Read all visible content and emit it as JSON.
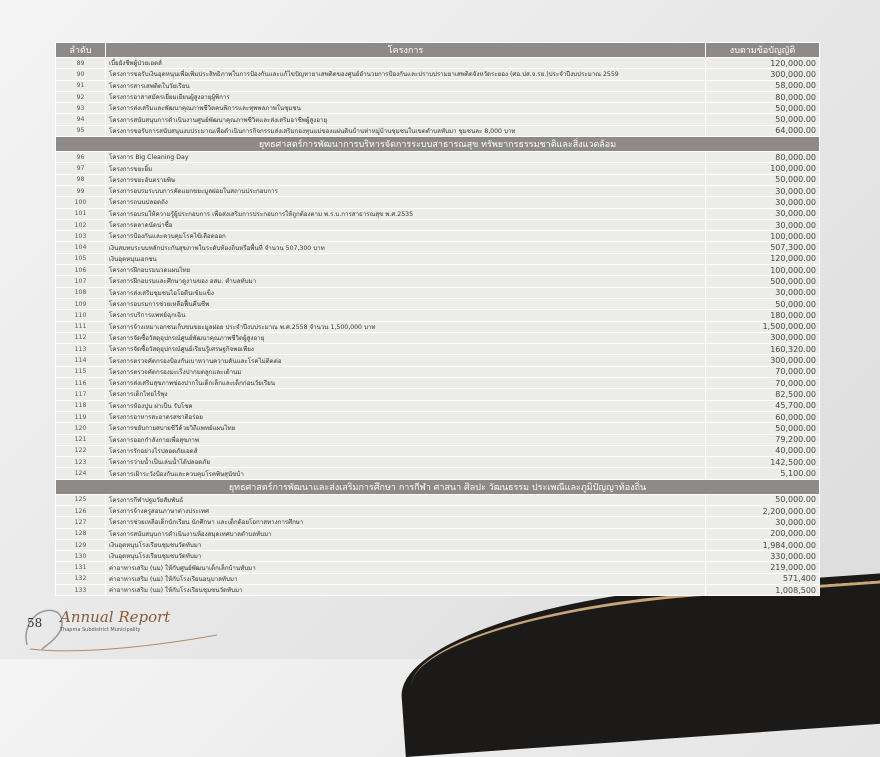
{
  "header": {
    "no": "ลำดับ",
    "project": "โครงการ",
    "budget": "งบตามข้อบัญญัติ"
  },
  "groups": [
    {
      "section": "",
      "rows": [
        [
          "89",
          "เบี้ยยังชีพผู้ป่วยเอดส์",
          "120,000.00"
        ],
        [
          "90",
          "โครงการขอรับเงินอุดหนุนเพื่อเพิ่มประสิทธิภาพในการป้องกันและแก้ไขปัญหายาเสพติดของศูนย์อำนวยการป้องกันและปราบปรามยาเสพติดจังหวัดระยอง (ศอ.ปส.จ.รย.)ประจำปีงบประมาณ 2559",
          "300,000.00"
        ],
        [
          "91",
          "โครงการสารเสพติดในวัยเรียน",
          "58,000.00"
        ],
        [
          "92",
          "โครงการอาสาสมัครเยี่ยมเยียนผู้สูงอายุผู้พิการ",
          "80,000.00"
        ],
        [
          "93",
          "โครงการส่งเสริมและพัฒนาคุณภาพชีวิตคนพิการและทุพพลภาพในชุมชน",
          "50,000.00"
        ],
        [
          "94",
          "โครงการสนับสนุนการดำเนินงานศูนย์พัฒนาคุณภาพชีวิตและส่งเสริมอาชีพผู้สูงอายุ",
          "50,000.00"
        ],
        [
          "95",
          "โครงการขอรับการสนับสนุนงบประมาณเพื่อดำเนินการกิจกรรมส่งเสริมกองทุนแม่ของแผ่นดินบ้านท่าหมู่บ้านชุมชนในเขตตำบลทับมา ชุมชนละ 8,000 บาท",
          "64,000.00"
        ]
      ]
    },
    {
      "section": "ยุทธศาสตร์การพัฒนาการบริหารจัดการระบบสาธารณสุข ทรัพยากรธรรมชาติและสิ่งแวดล้อม",
      "rows": [
        [
          "96",
          "โครงการ Big Cleaning Day",
          "80,000.00"
        ],
        [
          "97",
          "โครงการขยะยิ้ม",
          "100,000.00"
        ],
        [
          "98",
          "โครงการขยะอันตรายพิษ",
          "50,000.00"
        ],
        [
          "99",
          "โครงการอบรมระบบการคัดแยกขยะมูลฝอยในสถานประกอบการ",
          "30,000.00"
        ],
        [
          "100",
          "โครงการถนนปลอดถัง",
          "30,000.00"
        ],
        [
          "101",
          "โครงการอบรมให้ความรู้ผู้ประกอบการ เพื่อส่งเสริมการประกอบการให้ถูกต้องตาม พ.ร.บ.การสาธารณสุข พ.ศ.2535",
          "30,000.00"
        ],
        [
          "102",
          "โครงการตลาดนัดน่าซื้อ",
          "30,000.00"
        ],
        [
          "103",
          "โครงการป้องกันและควบคุมโรคไข้เลือดออก",
          "100,000.00"
        ],
        [
          "104",
          "เงินสมทบระบบหลักประกันสุขภาพในระดับท้องถิ่นหรือพื้นที่ จำนวน 507,300 บาท",
          "507,300.00"
        ],
        [
          "105",
          "เงินอุดหนุนเอกชน",
          "120,000.00"
        ],
        [
          "106",
          "โครงการฝึกอบรมนวดแผนไทย",
          "100,000.00"
        ],
        [
          "107",
          "โครงการฝึกอบรมและศึกษาดูงานของ อสม. ตำบลทับมา",
          "500,000.00"
        ],
        [
          "108",
          "โครงการส่งเสริมชุมชนไอโอดีนเข้มแข็ง",
          "30,000.00"
        ],
        [
          "109",
          "โครงการอบรมการช่วยเหลือฟื้นคืนชีพ",
          "50,000.00"
        ],
        [
          "110",
          "โครงการบริการแพทย์ฉุกเฉิน",
          "180,000.00"
        ],
        [
          "111",
          "โครงการจ้างเหมาเอกชนเก็บขนขยะมูลฝอย ประจำปีงบประมาณ พ.ศ.2558 จำนวน 1,500,000 บาท",
          "1,500,000.00"
        ],
        [
          "112",
          "โครงการจัดซื้อวัสดุอุปกรณ์ศูนย์พัฒนาคุณภาพชีวิตผู้สูงอายุ",
          "300,000.00"
        ],
        [
          "113",
          "โครงการจัดซื้อวัสดุอุปกรณ์ศูนย์เรียนรู้เศรษฐกิจพอเพียง",
          "160,320.00"
        ],
        [
          "114",
          "โครงการตรวจคัดกรองป้องกันเบาหวานความดันและโรคไม่ติดต่อ",
          "300,000.00"
        ],
        [
          "115",
          "โครงการตรวจคัดกรองมะเร็งปากมดลูกและเต้านม",
          "70,000.00"
        ],
        [
          "116",
          "โครงการส่งเสริมสุขภาพช่องปากในเด็กเล็กและเด็กก่อนวัยเรียน",
          "70,000.00"
        ],
        [
          "117",
          "โครงการเด็กไทยไร้พุง",
          "82,500.00"
        ],
        [
          "118",
          "โครงการห้องปูน ฝาเป็น รับโชค",
          "45,700.00"
        ],
        [
          "119",
          "โครงการอาหารสะอาดรสชาติอร่อย",
          "60,000.00"
        ],
        [
          "120",
          "โครงการขยับกายสบายชีวีด้วยวิถีแพทย์แผนไทย",
          "50,000.00"
        ],
        [
          "121",
          "โครงการออกกำลังกายเพื่อสุขภาพ",
          "79,200.00"
        ],
        [
          "122",
          "โครงการรักอย่างไรปลอดภัยเอดส์",
          "40,000.00"
        ],
        [
          "123",
          "โครงการว่ายน้ำเป็นเล่นน้ำได้ปลอดภัย",
          "142,500.00"
        ],
        [
          "124",
          "โครงการเฝ้าระวังป้องกันและควบคุมโรคพิษสุนัขบ้า",
          "5,100.00"
        ]
      ]
    },
    {
      "section": "ยุทธศาสตร์การพัฒนาและส่งเสริมการศึกษา การกีฬา ศาสนา ศิลปะ วัฒนธรรม ประเพณีและภูมิปัญญาท้องถิ่น",
      "rows": [
        [
          "125",
          "โครงการกีฬาปฐมวัยสัมพันธ์",
          "50,000.00"
        ],
        [
          "126",
          "โครงการจ้างครูสอนภาษาต่างประเทศ",
          "2,200,000.00"
        ],
        [
          "127",
          "โครงการช่วยเหลือเด็กนักเรียน นักศึกษา และเด็กด้อยโอกาสทางการศึกษา",
          "30,000.00"
        ],
        [
          "128",
          "โครงการสนับสนุนการดำเนินงานห้องสมุดเทศบาลตำบลทับมา",
          "200,000.00"
        ],
        [
          "129",
          "เงินอุดหนุนโรงเรียนชุมชนวัดทับมา",
          "1,984,000.00"
        ],
        [
          "130",
          "เงินอุดหนุนโรงเรียนชุมชนวัดทับมา",
          "330,000.00"
        ],
        [
          "131",
          "ค่าอาหารเสริม (นม) ให้กับศูนย์พัฒนาเด็กเล็กบ้านทับมา",
          "219,000.00"
        ],
        [
          "132",
          "ค่าอาหารเสริม (นม) ให้กับโรงเรียนอนุบาลทับมา",
          "571,400"
        ],
        [
          "133",
          "ค่าอาหารเสริม (นม) ให้กับโรงเรียนชุมชนวัดทับมา",
          "1,008,500"
        ]
      ]
    }
  ],
  "footer": {
    "page": "58",
    "title": "Annual Report",
    "subtitle": "Thapma Subdistrict Municipality"
  },
  "colors": {
    "header": "#8e8a88",
    "row": "#ececea",
    "brand": "#8a5a3a"
  }
}
